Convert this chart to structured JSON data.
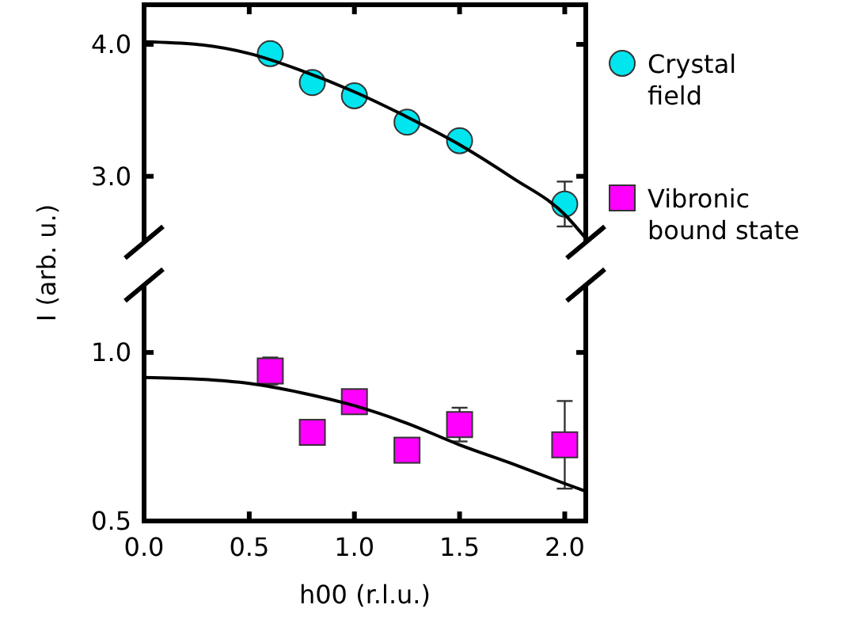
{
  "chart_data": [
    {
      "type": "scatter",
      "ylabel": "I (arb. u.)",
      "xlim": [
        0,
        2.1
      ],
      "xticks": [
        {
          "value": 0,
          "label": null
        },
        {
          "value": 0.5,
          "label": null
        },
        {
          "value": 1,
          "label": null
        },
        {
          "value": 1.5,
          "label": null
        },
        {
          "value": 2,
          "label": null
        }
      ],
      "ylim": [
        2.5,
        4.3
      ],
      "yticks": [
        {
          "value": 3,
          "label": "3.0"
        },
        {
          "value": 4,
          "label": "4.0"
        }
      ],
      "tick_labels": "y",
      "legend": "right",
      "grid": false,
      "series": [
        {
          "name": "Crystal field",
          "color": "#00e5ee",
          "marker": "circle",
          "x": [
            0.6,
            0.8,
            1.0,
            1.25,
            1.5,
            2.0
          ],
          "values": [
            3.93,
            3.71,
            3.61,
            3.41,
            3.27,
            2.79
          ],
          "errors": [
            null,
            null,
            0.07,
            null,
            null,
            0.17
          ]
        },
        {
          "type": "line",
          "color": "#000000",
          "line_style": "solid",
          "x": [
            0,
            0.25,
            0.5,
            0.75,
            1,
            1.25,
            1.5,
            1.75,
            2,
            2.1
          ],
          "values": [
            4.02,
            4.0,
            3.93,
            3.8,
            3.64,
            3.45,
            3.24,
            2.99,
            2.71,
            2.53
          ]
        }
      ]
    },
    {
      "type": "scatter",
      "xlabel": "h00 (r.l.u.)",
      "xlim": [
        0,
        2.1
      ],
      "xticks": [
        {
          "value": 0,
          "label": "0.0"
        },
        {
          "value": 0.5,
          "label": "0.5"
        },
        {
          "value": 1,
          "label": "1.0"
        },
        {
          "value": 1.5,
          "label": "1.5"
        },
        {
          "value": 2,
          "label": "2.0"
        }
      ],
      "ylim": [
        0.5,
        1.2
      ],
      "yticks": [
        {
          "value": 0.5,
          "label": "0.5"
        },
        {
          "value": 1,
          "label": "1.0"
        }
      ],
      "legend": "right",
      "grid": false,
      "series": [
        {
          "name": "Vibronic bound state",
          "color": "#ff00ff",
          "marker": "square",
          "x": [
            0.6,
            0.8,
            1.0,
            1.25,
            1.5,
            2.0
          ],
          "values": [
            0.945,
            0.763,
            0.854,
            0.71,
            0.786,
            0.726
          ],
          "errors": [
            0.04,
            null,
            null,
            null,
            0.05,
            0.13
          ]
        },
        {
          "type": "line",
          "color": "#000000",
          "line_style": "solid",
          "x": [
            0,
            0.25,
            0.5,
            0.75,
            1,
            1.25,
            1.5,
            1.75,
            2,
            2.1
          ],
          "values": [
            0.926,
            0.921,
            0.908,
            0.88,
            0.842,
            0.79,
            0.726,
            0.67,
            0.611,
            0.588
          ]
        }
      ]
    }
  ]
}
